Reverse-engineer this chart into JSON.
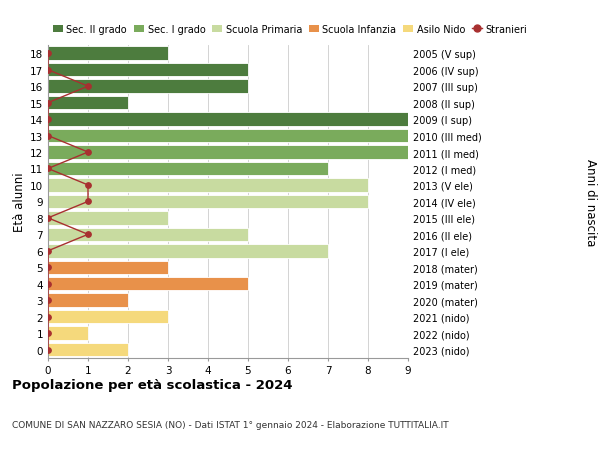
{
  "ages": [
    0,
    1,
    2,
    3,
    4,
    5,
    6,
    7,
    8,
    9,
    10,
    11,
    12,
    13,
    14,
    15,
    16,
    17,
    18
  ],
  "years_labels": [
    "2023 (nido)",
    "2022 (nido)",
    "2021 (nido)",
    "2020 (mater)",
    "2019 (mater)",
    "2018 (mater)",
    "2017 (I ele)",
    "2016 (II ele)",
    "2015 (III ele)",
    "2014 (IV ele)",
    "2013 (V ele)",
    "2012 (I med)",
    "2011 (II med)",
    "2010 (III med)",
    "2009 (I sup)",
    "2008 (II sup)",
    "2007 (III sup)",
    "2006 (IV sup)",
    "2005 (V sup)"
  ],
  "bar_values": [
    2,
    1,
    3,
    2,
    5,
    3,
    7,
    5,
    3,
    8,
    8,
    7,
    9,
    9,
    9,
    2,
    5,
    5,
    3
  ],
  "bar_colors": [
    "#f5d97c",
    "#f5d97c",
    "#f5d97c",
    "#e8914a",
    "#e8914a",
    "#e8914a",
    "#c8dba0",
    "#c8dba0",
    "#c8dba0",
    "#c8dba0",
    "#c8dba0",
    "#7aab5c",
    "#7aab5c",
    "#7aab5c",
    "#4d7c3e",
    "#4d7c3e",
    "#4d7c3e",
    "#4d7c3e",
    "#4d7c3e"
  ],
  "stranieri_values": [
    0,
    0,
    0,
    0,
    0,
    0,
    0,
    1,
    0,
    1,
    1,
    0,
    1,
    0,
    0,
    0,
    1,
    0,
    0
  ],
  "stranieri_color": "#a83030",
  "legend_labels": [
    "Sec. II grado",
    "Sec. I grado",
    "Scuola Primaria",
    "Scuola Infanzia",
    "Asilo Nido",
    "Stranieri"
  ],
  "legend_colors": [
    "#4d7c3e",
    "#7aab5c",
    "#c8dba0",
    "#e8914a",
    "#f5d97c",
    "#a83030"
  ],
  "ylabel_left": "Età alunni",
  "ylabel_right": "Anni di nascita",
  "title": "Popolazione per età scolastica - 2024",
  "subtitle": "COMUNE DI SAN NAZZARO SESIA (NO) - Dati ISTAT 1° gennaio 2024 - Elaborazione TUTTITALIA.IT",
  "xlim": [
    0,
    9
  ],
  "xticks": [
    0,
    1,
    2,
    3,
    4,
    5,
    6,
    7,
    8,
    9
  ],
  "bg_color": "#ffffff",
  "grid_color": "#cccccc",
  "bar_height": 0.82
}
